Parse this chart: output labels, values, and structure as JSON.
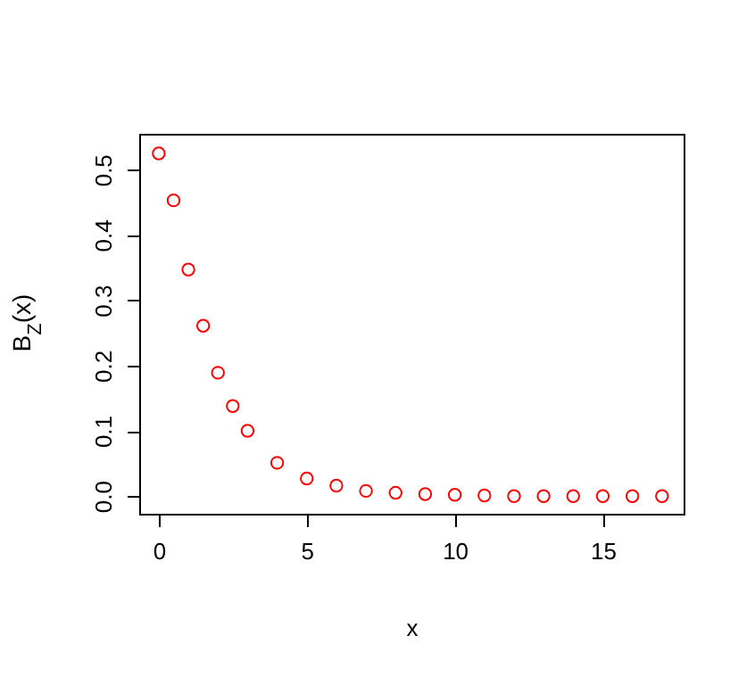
{
  "chart_data": {
    "type": "scatter",
    "xlabel": "x",
    "ylabel": "B$_{Z}$(x)",
    "x": [
      0,
      0.5,
      1,
      1.5,
      2,
      2.5,
      3,
      4,
      5,
      6,
      7,
      8,
      9,
      10,
      11,
      12,
      13,
      14,
      15,
      16,
      17
    ],
    "series": [
      {
        "color": "#ff0000",
        "values": [
          0.525,
          0.453,
          0.347,
          0.261,
          0.189,
          0.138,
          0.1,
          0.051,
          0.027,
          0.016,
          0.008,
          0.005,
          0.003,
          0.002,
          0.001,
          0.0,
          0.0,
          0.0,
          0.0,
          0.0,
          0.0
        ]
      }
    ],
    "xlim": [
      -0.66,
      17.73
    ],
    "ylim": [
      -0.027,
      0.555
    ],
    "xticks": [
      0,
      5,
      10,
      15
    ],
    "yticks": [
      {
        "value": 0,
        "label": "0.0"
      },
      0.1,
      0.2,
      0.3,
      0.4,
      0.5
    ],
    "marker": "circle",
    "grid": false
  }
}
